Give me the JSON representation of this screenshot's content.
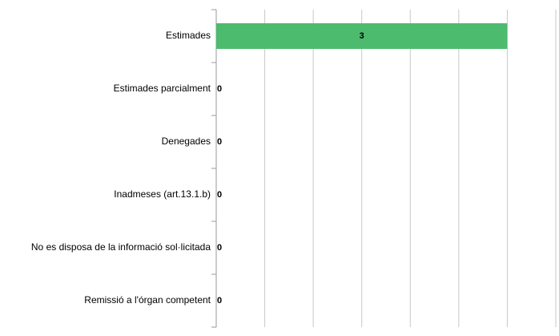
{
  "chart_data": {
    "type": "hbar",
    "categories": [
      "Estimades",
      "Estimades parcialment",
      "Denegades",
      "Inadmeses (art.13.1.b)",
      "No es disposa de la informació sol·licitada",
      "Remissió a l'órgan competent"
    ],
    "values": [
      3,
      0,
      0,
      0,
      0,
      0
    ],
    "color": "#4dbb6e",
    "xlim": [
      0,
      3.5
    ],
    "xticks": [
      0,
      0.5,
      1,
      1.5,
      2,
      2.5,
      3,
      3.5
    ],
    "grid": true
  }
}
